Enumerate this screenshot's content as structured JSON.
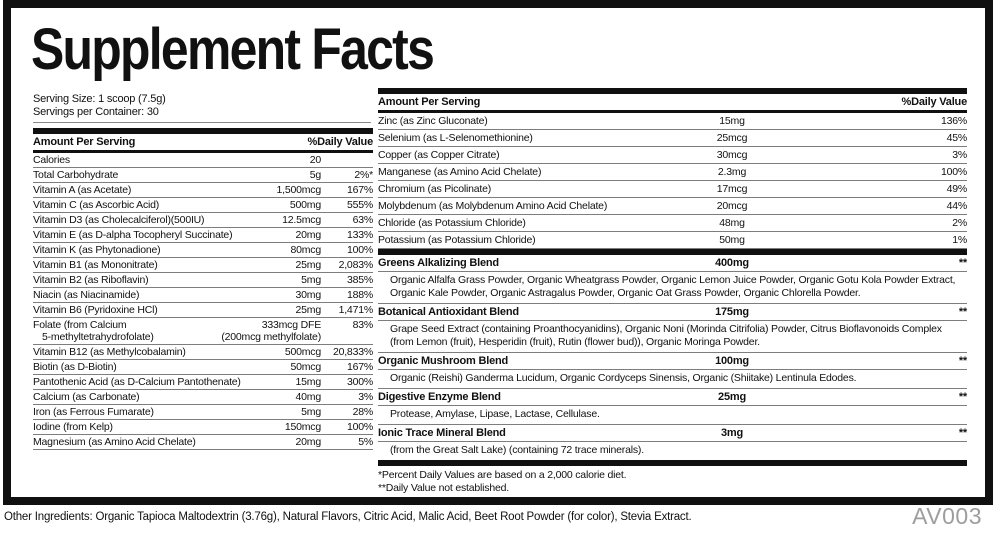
{
  "title": "Supplement Facts",
  "serving": {
    "size": "Serving Size: 1 scoop (7.5g)",
    "per_container": "Servings per Container: 30"
  },
  "left_table": {
    "header_amount": "Amount Per Serving",
    "header_dv": "%Daily Value",
    "rows": [
      {
        "name": "Calories",
        "amount": "20",
        "dv": ""
      },
      {
        "name": "Total Carbohydrate",
        "amount": "5g",
        "dv": "2%*"
      },
      {
        "name": "Vitamin A (as Acetate)",
        "amount": "1,500mcg",
        "dv": "167%"
      },
      {
        "name": "Vitamin C (as Ascorbic Acid)",
        "amount": "500mg",
        "dv": "555%"
      },
      {
        "name": "Vitamin D3 (as Cholecalciferol)(500IU)",
        "amount": "12.5mcg",
        "dv": "63%"
      },
      {
        "name": "Vitamin E (as D-alpha Tocopheryl Succinate)",
        "amount": "20mg",
        "dv": "133%"
      },
      {
        "name": "Vitamin K (as Phytonadione)",
        "amount": "80mcg",
        "dv": "100%"
      },
      {
        "name": "Vitamin B1 (as Mononitrate)",
        "amount": "25mg",
        "dv": "2,083%"
      },
      {
        "name": "Vitamin B2 (as Riboflavin)",
        "amount": "5mg",
        "dv": "385%"
      },
      {
        "name": "Niacin (as Niacinamide)",
        "amount": "30mg",
        "dv": "188%"
      },
      {
        "name": "Vitamin B6 (Pyridoxine HCl)",
        "amount": "25mg",
        "dv": "1,471%"
      },
      {
        "name": "Folate (from Calcium",
        "name2": "5-methyltetrahydrofolate)",
        "amount": "333mcg DFE",
        "amount2": "(200mcg methylfolate)",
        "dv": "83%",
        "two_line": true
      },
      {
        "name": "Vitamin B12 (as Methylcobalamin)",
        "amount": "500mcg",
        "dv": "20,833%"
      },
      {
        "name": "Biotin (as D-Biotin)",
        "amount": "50mcg",
        "dv": "167%"
      },
      {
        "name": "Pantothenic Acid (as D-Calcium Pantothenate)",
        "amount": "15mg",
        "dv": "300%"
      },
      {
        "name": "Calcium (as Carbonate)",
        "amount": "40mg",
        "dv": "3%"
      },
      {
        "name": "Iron (as Ferrous Fumarate)",
        "amount": "5mg",
        "dv": "28%"
      },
      {
        "name": "Iodine (from Kelp)",
        "amount": "150mcg",
        "dv": "100%"
      },
      {
        "name": "Magnesium (as Amino Acid Chelate)",
        "amount": "20mg",
        "dv": "5%"
      }
    ]
  },
  "right_table": {
    "header_amount": "Amount Per Serving",
    "header_dv": "%Daily Value",
    "rows": [
      {
        "name": "Zinc (as Zinc Gluconate)",
        "amount": "15mg",
        "dv": "136%"
      },
      {
        "name": "Selenium (as L-Selenomethionine)",
        "amount": "25mcg",
        "dv": "45%"
      },
      {
        "name": "Copper (as Copper Citrate)",
        "amount": "30mcg",
        "dv": "3%"
      },
      {
        "name": "Manganese (as Amino Acid Chelate)",
        "amount": "2.3mg",
        "dv": "100%"
      },
      {
        "name": "Chromium (as Picolinate)",
        "amount": "17mcg",
        "dv": "49%"
      },
      {
        "name": "Molybdenum (as Molybdenum Amino Acid Chelate)",
        "amount": "20mcg",
        "dv": "44%"
      },
      {
        "name": "Chloride (as Potassium Chloride)",
        "amount": "48mg",
        "dv": "2%"
      },
      {
        "name": "Potassium (as Potassium Chloride)",
        "amount": "50mg",
        "dv": "1%"
      }
    ]
  },
  "blends": [
    {
      "name": "Greens Alkalizing Blend",
      "amount": "400mg",
      "dv": "**",
      "desc": "Organic Alfalfa Grass Powder, Organic Wheatgrass Powder, Organic Lemon Juice Powder, Organic Gotu Kola Powder Extract, Organic Kale Powder, Organic Astragalus Powder, Organic Oat Grass Powder, Organic Chlorella Powder."
    },
    {
      "name": "Botanical Antioxidant Blend",
      "amount": "175mg",
      "dv": "**",
      "desc": "Grape Seed Extract (containing Proanthocyanidins), Organic Noni (Morinda Citrifolia) Powder, Citrus Bioflavonoids Complex (from Lemon (fruit), Hesperidin (fruit), Rutin (flower bud)), Organic Moringa Powder."
    },
    {
      "name": "Organic Mushroom Blend",
      "amount": "100mg",
      "dv": "**",
      "desc": "Organic (Reishi) Ganderma Lucidum, Organic Cordyceps Sinensis, Organic (Shiitake) Lentinula Edodes."
    },
    {
      "name": "Digestive Enzyme Blend",
      "amount": "25mg",
      "dv": "**",
      "desc": "Protease, Amylase, Lipase, Lactase, Cellulase."
    },
    {
      "name": "Ionic Trace Mineral Blend",
      "amount": "3mg",
      "dv": "**",
      "desc": "(from the Great Salt Lake) (containing 72 trace minerals)."
    }
  ],
  "footnotes": {
    "line1": "*Percent Daily Values are based on a 2,000 calorie diet.",
    "line2": "**Daily Value not established."
  },
  "other_ingredients": "Other Ingredients: Organic Tapioca Maltodextrin (3.76g), Natural Flavors, Citric Acid, Malic Acid, Beet Root Powder (for color), Stevia Extract.",
  "product_code": "AV003"
}
